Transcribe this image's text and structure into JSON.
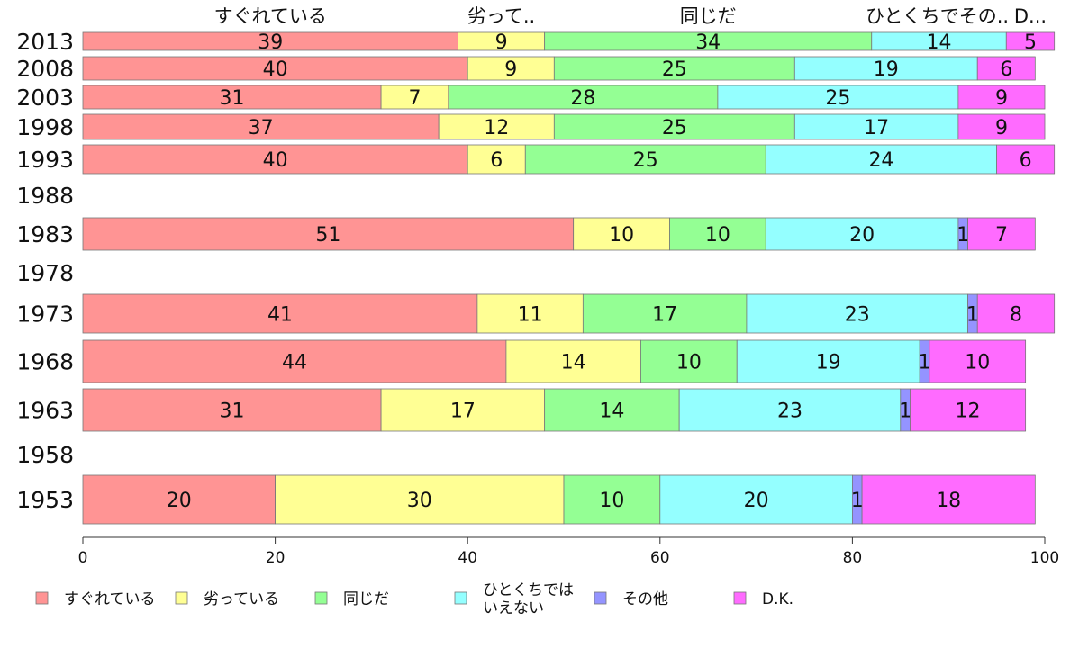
{
  "chart_data": {
    "type": "bar",
    "orientation": "horizontal",
    "stacked": true,
    "xlim": [
      0,
      100
    ],
    "x_ticks": [
      0,
      20,
      40,
      60,
      80,
      100
    ],
    "top_labels": [
      "すぐれている",
      "劣って..",
      "同じだ",
      "ひとくちでその..",
      "D..."
    ],
    "series": [
      {
        "name": "すぐれている",
        "legend": [
          "すぐれている"
        ],
        "color": "#ff9494"
      },
      {
        "name": "劣っている",
        "legend": [
          "劣っている"
        ],
        "color": "#ffff94"
      },
      {
        "name": "同じだ",
        "legend": [
          "同じだ"
        ],
        "color": "#94ff94"
      },
      {
        "name": "ひとくちではいえない",
        "legend": [
          "ひとくちでは",
          "いえない"
        ],
        "color": "#94ffff"
      },
      {
        "name": "その他",
        "legend": [
          "その他"
        ],
        "color": "#9494ff"
      },
      {
        "name": "D.K.",
        "legend": [
          "D.K."
        ],
        "color": "#ff6bff"
      }
    ],
    "rows": [
      {
        "year": "2013",
        "values": [
          39,
          9,
          34,
          14,
          0,
          5
        ]
      },
      {
        "year": "2008",
        "values": [
          40,
          9,
          25,
          19,
          0,
          6
        ]
      },
      {
        "year": "2003",
        "values": [
          31,
          7,
          28,
          25,
          0,
          9
        ]
      },
      {
        "year": "1998",
        "values": [
          37,
          12,
          25,
          17,
          0,
          9
        ]
      },
      {
        "year": "1993",
        "values": [
          40,
          6,
          25,
          24,
          0,
          6
        ]
      },
      {
        "year": "1988",
        "values": null
      },
      {
        "year": "1983",
        "values": [
          51,
          10,
          10,
          20,
          1,
          7
        ]
      },
      {
        "year": "1978",
        "values": null
      },
      {
        "year": "1973",
        "values": [
          41,
          11,
          17,
          23,
          1,
          8
        ]
      },
      {
        "year": "1968",
        "values": [
          44,
          14,
          10,
          19,
          1,
          10
        ]
      },
      {
        "year": "1963",
        "values": [
          31,
          17,
          14,
          23,
          1,
          12
        ]
      },
      {
        "year": "1958",
        "values": null
      },
      {
        "year": "1953",
        "values": [
          20,
          30,
          10,
          20,
          1,
          18
        ]
      }
    ]
  }
}
